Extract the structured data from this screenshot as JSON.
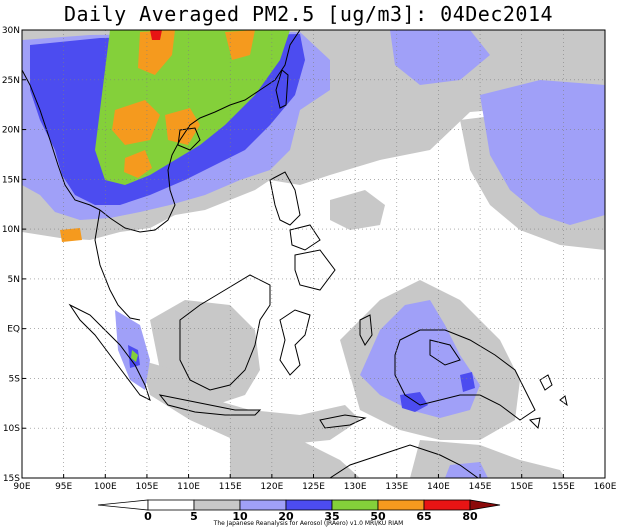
{
  "title": "Daily Averaged PM2.5 [ug/m3]: 04Dec2014",
  "credit": "The Japanese Reanalysis for Aerosol (JRAero) v1.0 MRI/KU RIAM",
  "map": {
    "lon_range": [
      90,
      160
    ],
    "lat_range": [
      -15,
      30
    ],
    "lon_ticks": [
      {
        "value": 90,
        "label": "90E"
      },
      {
        "value": 95,
        "label": "95E"
      },
      {
        "value": 100,
        "label": "100E"
      },
      {
        "value": 105,
        "label": "105E"
      },
      {
        "value": 110,
        "label": "110E"
      },
      {
        "value": 115,
        "label": "115E"
      },
      {
        "value": 120,
        "label": "120E"
      },
      {
        "value": 125,
        "label": "125E"
      },
      {
        "value": 130,
        "label": "130E"
      },
      {
        "value": 135,
        "label": "135E"
      },
      {
        "value": 140,
        "label": "140E"
      },
      {
        "value": 145,
        "label": "145E"
      },
      {
        "value": 150,
        "label": "150E"
      },
      {
        "value": 155,
        "label": "155E"
      },
      {
        "value": 160,
        "label": "160E"
      }
    ],
    "lat_ticks": [
      {
        "value": 30,
        "label": "30N"
      },
      {
        "value": 25,
        "label": "25N"
      },
      {
        "value": 20,
        "label": "20N"
      },
      {
        "value": 15,
        "label": "15N"
      },
      {
        "value": 10,
        "label": "10N"
      },
      {
        "value": 5,
        "label": "5N"
      },
      {
        "value": 0,
        "label": "EQ"
      },
      {
        "value": -5,
        "label": "5S"
      },
      {
        "value": -10,
        "label": "10S"
      },
      {
        "value": -15,
        "label": "15S"
      }
    ],
    "gridlines": "dotted"
  },
  "colorbar": {
    "levels": [
      {
        "value": "0",
        "color": "#ffffff"
      },
      {
        "value": "5",
        "color": "#ffffff"
      },
      {
        "value": "10",
        "color": "#c8c8c8"
      },
      {
        "value": "20",
        "color": "#a0a0f8"
      },
      {
        "value": "35",
        "color": "#4c4cf0"
      },
      {
        "value": "50",
        "color": "#84d03a"
      },
      {
        "value": "65",
        "color": "#f59a1e"
      },
      {
        "value": "80",
        "color": "#e81414"
      }
    ],
    "overflow_color": "#8c0a0a"
  }
}
